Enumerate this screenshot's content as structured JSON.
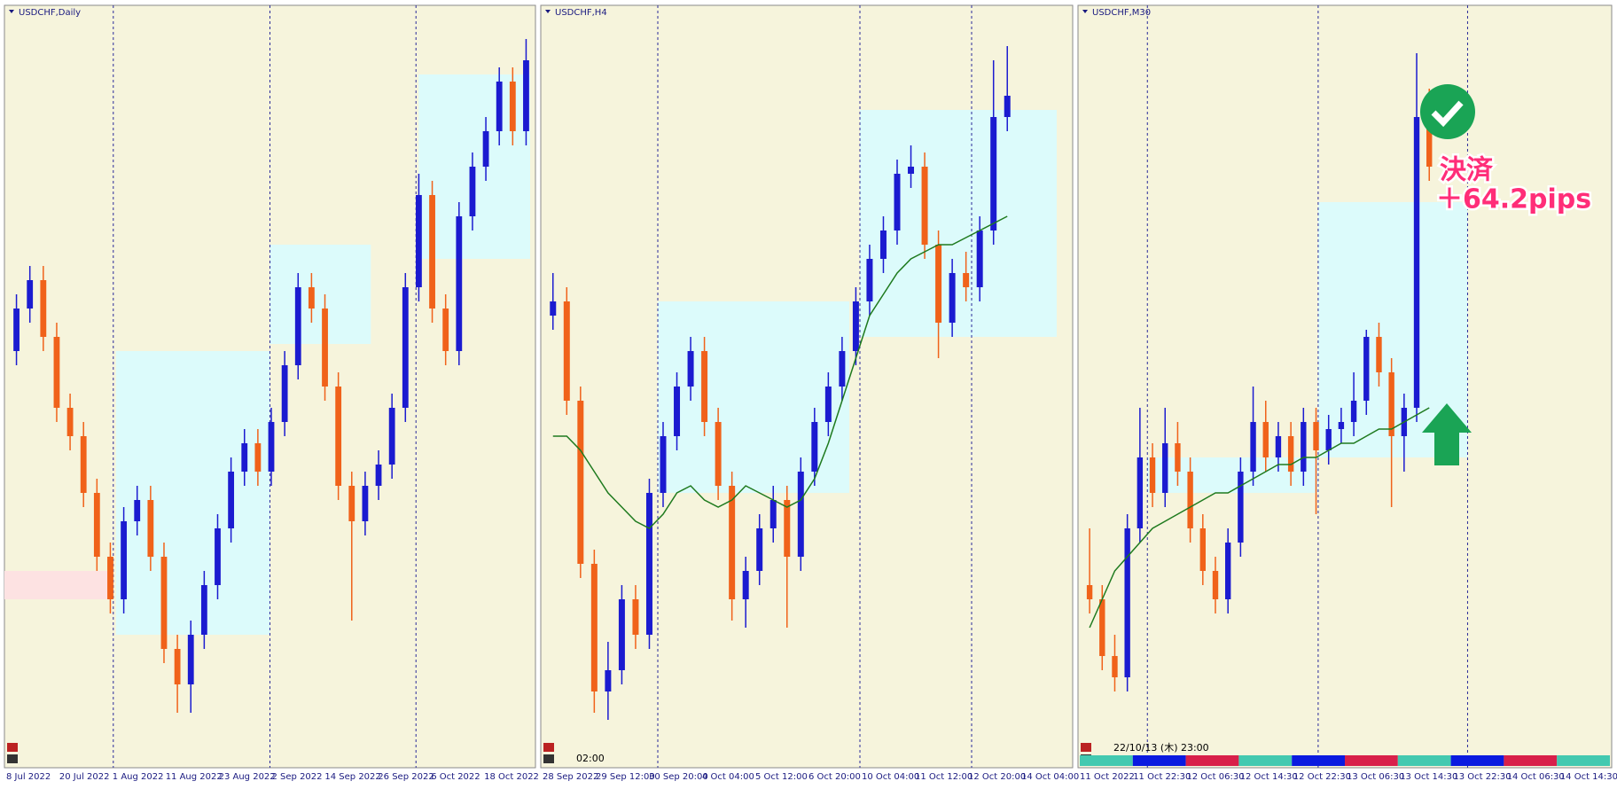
{
  "panels": [
    {
      "title": "USDCHF,Daily",
      "ylim": [
        0,
        100
      ],
      "xlabels": [
        "8 Jul 2022",
        "20 Jul 2022",
        "1 Aug 2022",
        "11 Aug 2022",
        "23 Aug 2022",
        "2 Sep 2022",
        "14 Sep 2022",
        "26 Sep 2022",
        "6 Oct 2022",
        "18 Oct 2022"
      ],
      "candles": [
        [
          55,
          63,
          53,
          61
        ],
        [
          61,
          67,
          59,
          65
        ],
        [
          65,
          67,
          55,
          57
        ],
        [
          57,
          59,
          45,
          47
        ],
        [
          47,
          49,
          41,
          43
        ],
        [
          43,
          45,
          33,
          35
        ],
        [
          35,
          37,
          24,
          26
        ],
        [
          26,
          28,
          18,
          20
        ],
        [
          20,
          33,
          18,
          31
        ],
        [
          31,
          36,
          29,
          34
        ],
        [
          34,
          36,
          24,
          26
        ],
        [
          26,
          28,
          11,
          13
        ],
        [
          13,
          15,
          4,
          8
        ],
        [
          8,
          17,
          4,
          15
        ],
        [
          15,
          24,
          13,
          22
        ],
        [
          22,
          32,
          20,
          30
        ],
        [
          30,
          40,
          28,
          38
        ],
        [
          38,
          44,
          36,
          42
        ],
        [
          42,
          44,
          36,
          38
        ],
        [
          38,
          47,
          36,
          45
        ],
        [
          45,
          55,
          43,
          53
        ],
        [
          53,
          66,
          51,
          64
        ],
        [
          64,
          66,
          59,
          61
        ],
        [
          61,
          63,
          48,
          50
        ],
        [
          50,
          52,
          34,
          36
        ],
        [
          36,
          38,
          17,
          31
        ],
        [
          31,
          38,
          29,
          36
        ],
        [
          36,
          41,
          34,
          39
        ],
        [
          39,
          49,
          37,
          47
        ],
        [
          47,
          66,
          45,
          64
        ],
        [
          64,
          80,
          62,
          77
        ],
        [
          77,
          79,
          59,
          61
        ],
        [
          61,
          63,
          53,
          55
        ],
        [
          55,
          76,
          53,
          74
        ],
        [
          74,
          83,
          72,
          81
        ],
        [
          81,
          88,
          79,
          86
        ],
        [
          86,
          95,
          84,
          93
        ],
        [
          93,
          95,
          84,
          86
        ],
        [
          86,
          99,
          84,
          96
        ]
      ]
    },
    {
      "title": "USDCHF,H4",
      "ylim": [
        0,
        100
      ],
      "time_label": "02:00",
      "xlabels": [
        "28 Sep 2022",
        "29 Sep 12:00",
        "30 Sep 20:00",
        "4 Oct 04:00",
        "5 Oct 12:00",
        "6 Oct 20:00",
        "10 Oct 04:00",
        "11 Oct 12:00",
        "12 Oct 20:00",
        "14 Oct 04:00"
      ],
      "candles": [
        [
          60,
          66,
          58,
          62
        ],
        [
          62,
          64,
          46,
          48
        ],
        [
          48,
          50,
          23,
          25
        ],
        [
          25,
          27,
          4,
          7
        ],
        [
          7,
          14,
          3,
          10
        ],
        [
          10,
          22,
          8,
          20
        ],
        [
          20,
          22,
          13,
          15
        ],
        [
          15,
          37,
          13,
          35
        ],
        [
          35,
          45,
          33,
          43
        ],
        [
          43,
          52,
          41,
          50
        ],
        [
          50,
          57,
          48,
          55
        ],
        [
          55,
          57,
          43,
          45
        ],
        [
          45,
          47,
          34,
          36
        ],
        [
          36,
          38,
          17,
          20
        ],
        [
          20,
          26,
          16,
          24
        ],
        [
          24,
          32,
          22,
          30
        ],
        [
          30,
          36,
          28,
          34
        ],
        [
          34,
          36,
          16,
          26
        ],
        [
          26,
          40,
          24,
          38
        ],
        [
          38,
          47,
          36,
          45
        ],
        [
          45,
          52,
          43,
          50
        ],
        [
          50,
          57,
          48,
          55
        ],
        [
          55,
          64,
          53,
          62
        ],
        [
          62,
          70,
          60,
          68
        ],
        [
          68,
          74,
          66,
          72
        ],
        [
          72,
          82,
          70,
          80
        ],
        [
          80,
          84,
          78,
          81
        ],
        [
          81,
          83,
          68,
          70
        ],
        [
          70,
          72,
          54,
          59
        ],
        [
          59,
          68,
          57,
          66
        ],
        [
          66,
          69,
          62,
          64
        ],
        [
          64,
          74,
          62,
          72
        ],
        [
          72,
          96,
          70,
          88
        ],
        [
          88,
          98,
          86,
          91
        ]
      ],
      "ma": [
        43,
        43,
        41,
        38,
        35,
        33,
        31,
        30,
        32,
        35,
        36,
        34,
        33,
        34,
        36,
        35,
        34,
        33,
        34,
        37,
        42,
        48,
        54,
        60,
        63,
        66,
        68,
        69,
        70,
        70,
        71,
        72,
        73,
        74
      ]
    },
    {
      "title": "USDCHF,M30",
      "ylim": [
        0,
        100
      ],
      "time_label": "22/10/13 (木) 23:00",
      "annotation": [
        "決済",
        "＋64.2pips"
      ],
      "xlabels": [
        "11 Oct 2022",
        "11 Oct 22:30",
        "12 Oct 06:30",
        "12 Oct 14:30",
        "12 Oct 22:30",
        "13 Oct 06:30",
        "13 Oct 14:30",
        "13 Oct 22:30",
        "14 Oct 06:30",
        "14 Oct 14:30"
      ],
      "candles": [
        [
          22,
          30,
          18,
          20
        ],
        [
          20,
          22,
          10,
          12
        ],
        [
          12,
          15,
          7,
          9
        ],
        [
          9,
          32,
          7,
          30
        ],
        [
          30,
          47,
          28,
          40
        ],
        [
          40,
          42,
          33,
          35
        ],
        [
          35,
          47,
          33,
          42
        ],
        [
          42,
          45,
          36,
          38
        ],
        [
          38,
          40,
          28,
          30
        ],
        [
          30,
          32,
          22,
          24
        ],
        [
          24,
          26,
          18,
          20
        ],
        [
          20,
          30,
          18,
          28
        ],
        [
          28,
          40,
          26,
          38
        ],
        [
          38,
          50,
          36,
          45
        ],
        [
          45,
          48,
          38,
          40
        ],
        [
          40,
          45,
          38,
          43
        ],
        [
          43,
          45,
          36,
          38
        ],
        [
          38,
          47,
          36,
          45
        ],
        [
          45,
          47,
          32,
          41
        ],
        [
          41,
          46,
          39,
          44
        ],
        [
          44,
          47,
          42,
          45
        ],
        [
          45,
          52,
          43,
          48
        ],
        [
          48,
          58,
          46,
          57
        ],
        [
          57,
          59,
          50,
          52
        ],
        [
          52,
          54,
          33,
          43
        ],
        [
          43,
          49,
          38,
          47
        ],
        [
          47,
          97,
          45,
          88
        ],
        [
          88,
          92,
          79,
          81
        ]
      ],
      "ma": [
        16,
        20,
        24,
        26,
        28,
        30,
        31,
        32,
        33,
        34,
        35,
        35,
        36,
        37,
        38,
        39,
        39,
        40,
        40,
        41,
        42,
        42,
        43,
        44,
        44,
        45,
        46,
        47
      ]
    }
  ]
}
